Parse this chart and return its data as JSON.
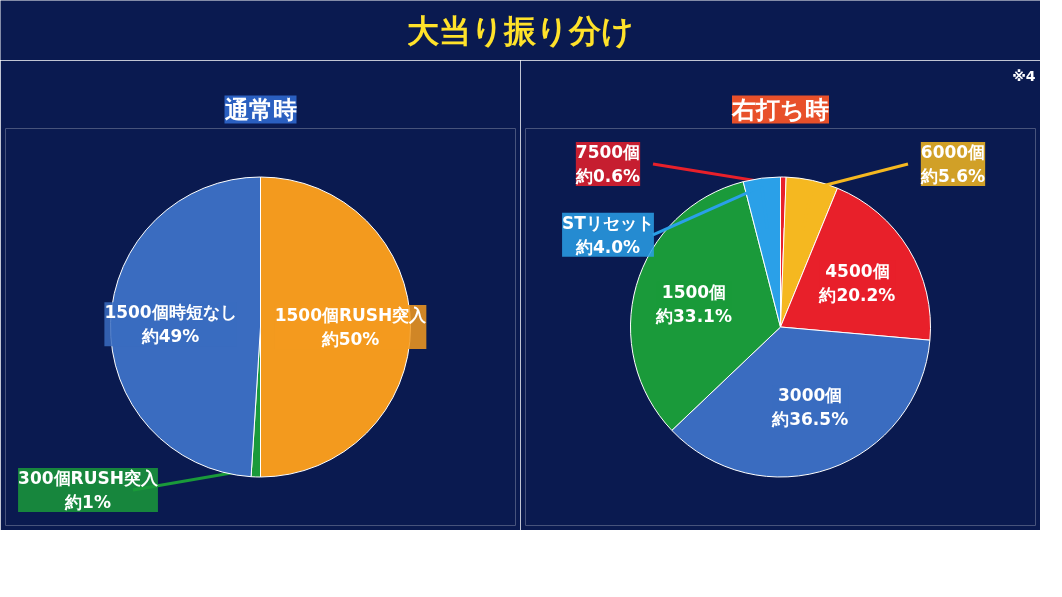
{
  "chart_data": [
    {
      "type": "pie",
      "title": "通常時",
      "annotations": [
        "大当り振り分け"
      ],
      "categories": [
        "1500個RUSH突入",
        "300個RUSH突入",
        "1500個時短なし"
      ],
      "values": [
        50,
        1,
        49
      ],
      "value_labels": [
        "約50%",
        "約1%",
        "約49%"
      ],
      "colors": [
        "#f39a1e",
        "#1a9a3a",
        "#3a6cc0"
      ]
    },
    {
      "type": "pie",
      "title": "右打ち時",
      "annotations": [
        "※4"
      ],
      "categories": [
        "7500個",
        "6000個",
        "4500個",
        "3000個",
        "1500個",
        "STリセット"
      ],
      "values": [
        0.6,
        5.6,
        20.2,
        36.5,
        33.1,
        4.0
      ],
      "value_labels": [
        "約0.6%",
        "約5.6%",
        "約20.2%",
        "約36.5%",
        "約33.1%",
        "約4.0%"
      ],
      "colors": [
        "#e8202a",
        "#f5b820",
        "#e8202a",
        "#3a6cc0",
        "#1a9a3a",
        "#2aa0e8"
      ]
    }
  ]
}
